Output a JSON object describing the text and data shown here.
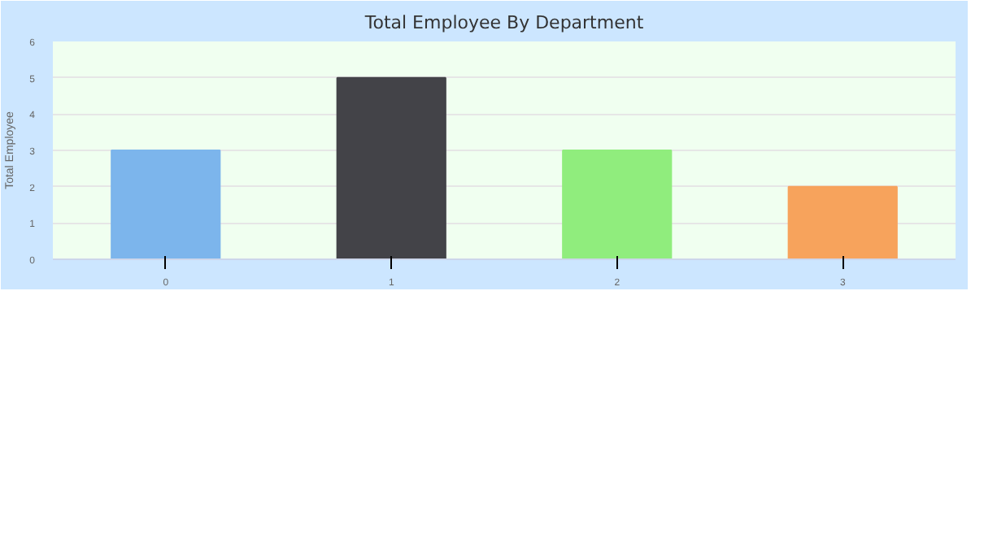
{
  "chart_data": {
    "type": "bar",
    "title": "Total Employee By Department",
    "ylabel": "Total Employee",
    "categories": [
      "0",
      "1",
      "2",
      "3"
    ],
    "values": [
      3,
      5,
      3,
      2
    ],
    "colors": [
      "#7cb5ec",
      "#434348",
      "#90ed7d",
      "#f7a35c"
    ],
    "ylim": [
      0,
      6
    ],
    "yticks": [
      0,
      1,
      2,
      3,
      4,
      5,
      6
    ],
    "grid": "y"
  }
}
